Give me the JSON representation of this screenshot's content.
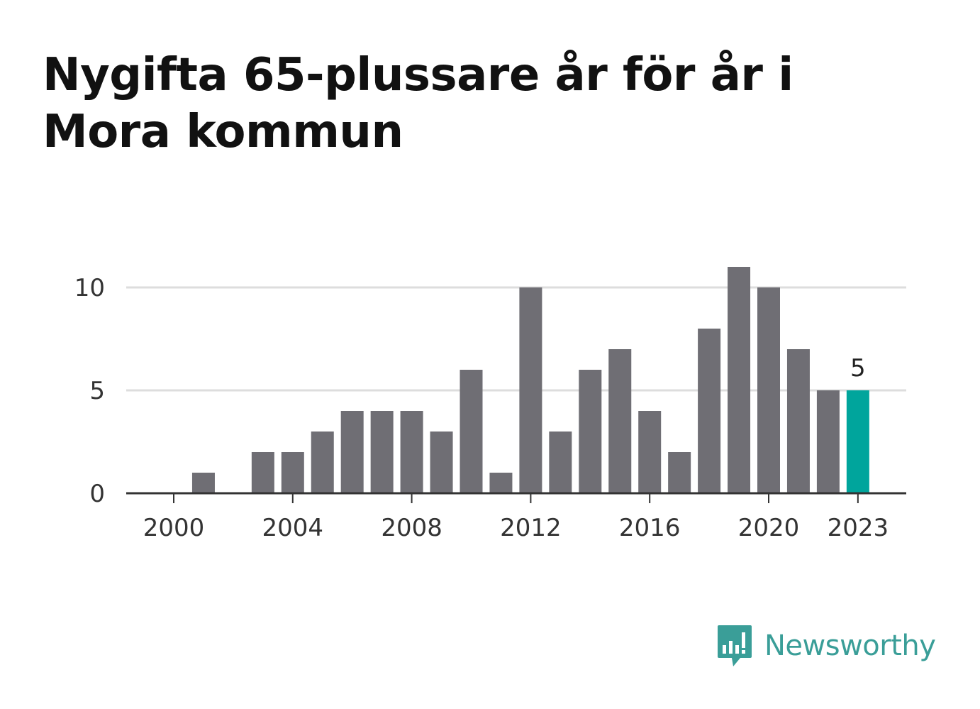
{
  "brand": {
    "name": "Newsworthy",
    "icon": "bar-chart-speech-bubble-icon",
    "color": "#3a9e98"
  },
  "chart_data": {
    "type": "bar",
    "title": "Nygifta 65-plussare år för år i Mora kommun",
    "xlabel": "",
    "ylabel": "",
    "categories": [
      "2000",
      "2001",
      "2002",
      "2003",
      "2004",
      "2005",
      "2006",
      "2007",
      "2008",
      "2009",
      "2010",
      "2011",
      "2012",
      "2013",
      "2014",
      "2015",
      "2016",
      "2017",
      "2018",
      "2019",
      "2020",
      "2021",
      "2022",
      "2023"
    ],
    "values": [
      0,
      1,
      0,
      2,
      2,
      3,
      4,
      4,
      4,
      3,
      6,
      1,
      10,
      3,
      6,
      7,
      4,
      2,
      8,
      11,
      10,
      7,
      5,
      5
    ],
    "x_tick_labels": [
      "2000",
      "2004",
      "2008",
      "2012",
      "2016",
      "2020",
      "2023"
    ],
    "y_ticks": [
      0,
      5,
      10
    ],
    "ylim": [
      0,
      11
    ],
    "grid": true,
    "legend": "none",
    "highlight": {
      "category": "2023",
      "label": "5"
    },
    "colors": {
      "bar": "#6f6e74",
      "highlight": "#00a59c",
      "grid": "#dddddd",
      "axis": "#333333"
    }
  }
}
